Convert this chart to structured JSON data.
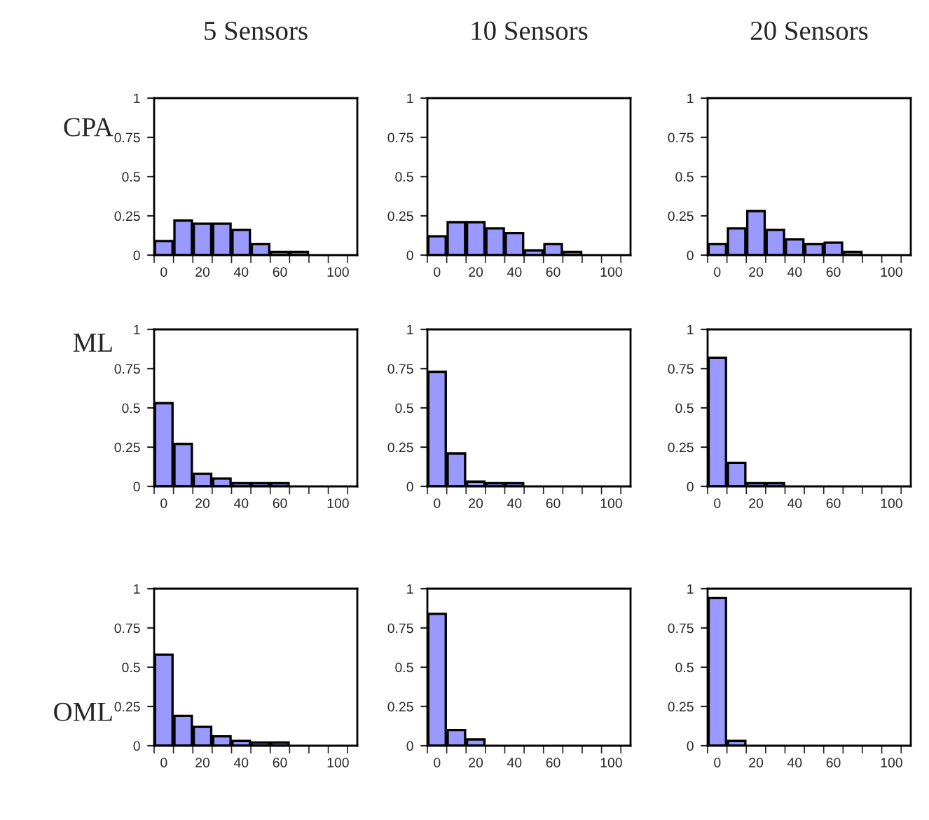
{
  "chart_data": [
    {
      "type": "bar",
      "title": "5 Sensors",
      "ylabel": "CPA",
      "categories": [
        "0",
        null,
        "20",
        null,
        "40",
        null,
        "60",
        null,
        null,
        "100"
      ],
      "color": "#9999ff",
      "values": [
        0.09,
        0.22,
        0.2,
        0.2,
        0.16,
        0.07,
        0.02,
        0.02,
        null,
        null
      ],
      "ylim": [
        0,
        1
      ],
      "yticks": [
        0,
        0.25,
        0.5,
        0.75,
        1
      ],
      "grid": false
    },
    {
      "type": "bar",
      "title": "10 Sensors",
      "categories": [
        "0",
        null,
        "20",
        null,
        "40",
        null,
        "60",
        null,
        null,
        "100"
      ],
      "color": "#9999ff",
      "values": [
        0.12,
        0.21,
        0.21,
        0.17,
        0.14,
        0.03,
        0.07,
        0.02,
        null,
        null
      ],
      "ylim": [
        0,
        1
      ],
      "yticks": [
        0,
        0.25,
        0.5,
        0.75,
        1
      ],
      "grid": false
    },
    {
      "type": "bar",
      "title": "20 Sensors",
      "categories": [
        "0",
        null,
        "20",
        null,
        "40",
        null,
        "60",
        null,
        null,
        "100"
      ],
      "color": "#9999ff",
      "values": [
        0.07,
        0.17,
        0.28,
        0.16,
        0.1,
        0.07,
        0.08,
        0.02,
        null,
        null
      ],
      "ylim": [
        0,
        1
      ],
      "yticks": [
        0,
        0.25,
        0.5,
        0.75,
        1
      ],
      "grid": false
    },
    {
      "type": "bar",
      "ylabel": "ML",
      "categories": [
        "0",
        null,
        "20",
        null,
        "40",
        null,
        "60",
        null,
        null,
        "100"
      ],
      "color": "#9999ff",
      "values": [
        0.53,
        0.27,
        0.08,
        0.05,
        0.02,
        0.02,
        0.02,
        null,
        null,
        null
      ],
      "ylim": [
        0,
        1
      ],
      "yticks": [
        0,
        0.25,
        0.5,
        0.75,
        1
      ],
      "grid": false
    },
    {
      "type": "bar",
      "categories": [
        "0",
        null,
        "20",
        null,
        "40",
        null,
        "60",
        null,
        null,
        "100"
      ],
      "color": "#9999ff",
      "values": [
        0.73,
        0.21,
        0.03,
        0.02,
        0.02,
        null,
        null,
        null,
        null,
        null
      ],
      "ylim": [
        0,
        1
      ],
      "yticks": [
        0,
        0.25,
        0.5,
        0.75,
        1
      ],
      "grid": false
    },
    {
      "type": "bar",
      "categories": [
        "0",
        null,
        "20",
        null,
        "40",
        null,
        "60",
        null,
        null,
        "100"
      ],
      "color": "#9999ff",
      "values": [
        0.82,
        0.15,
        0.02,
        0.02,
        null,
        null,
        null,
        null,
        null,
        null
      ],
      "ylim": [
        0,
        1
      ],
      "yticks": [
        0,
        0.25,
        0.5,
        0.75,
        1
      ],
      "grid": false
    },
    {
      "type": "bar",
      "ylabel": "OML",
      "categories": [
        "0",
        null,
        "20",
        null,
        "40",
        null,
        "60",
        null,
        null,
        "100"
      ],
      "color": "#9999ff",
      "values": [
        0.58,
        0.19,
        0.12,
        0.06,
        0.03,
        0.02,
        0.02,
        null,
        null,
        null
      ],
      "ylim": [
        0,
        1
      ],
      "yticks": [
        0,
        0.25,
        0.5,
        0.75,
        1
      ],
      "grid": false
    },
    {
      "type": "bar",
      "categories": [
        "0",
        null,
        "20",
        null,
        "40",
        null,
        "60",
        null,
        null,
        "100"
      ],
      "color": "#9999ff",
      "values": [
        0.84,
        0.1,
        0.04,
        null,
        null,
        null,
        null,
        null,
        null,
        null
      ],
      "ylim": [
        0,
        1
      ],
      "yticks": [
        0,
        0.25,
        0.5,
        0.75,
        1
      ],
      "grid": false
    },
    {
      "type": "bar",
      "categories": [
        "0",
        null,
        "20",
        null,
        "40",
        null,
        "60",
        null,
        null,
        "100"
      ],
      "color": "#9999ff",
      "values": [
        0.94,
        0.03,
        null,
        null,
        null,
        null,
        null,
        null,
        null,
        null
      ],
      "ylim": [
        0,
        1
      ],
      "yticks": [
        0,
        0.25,
        0.5,
        0.75,
        1
      ],
      "grid": false
    }
  ]
}
